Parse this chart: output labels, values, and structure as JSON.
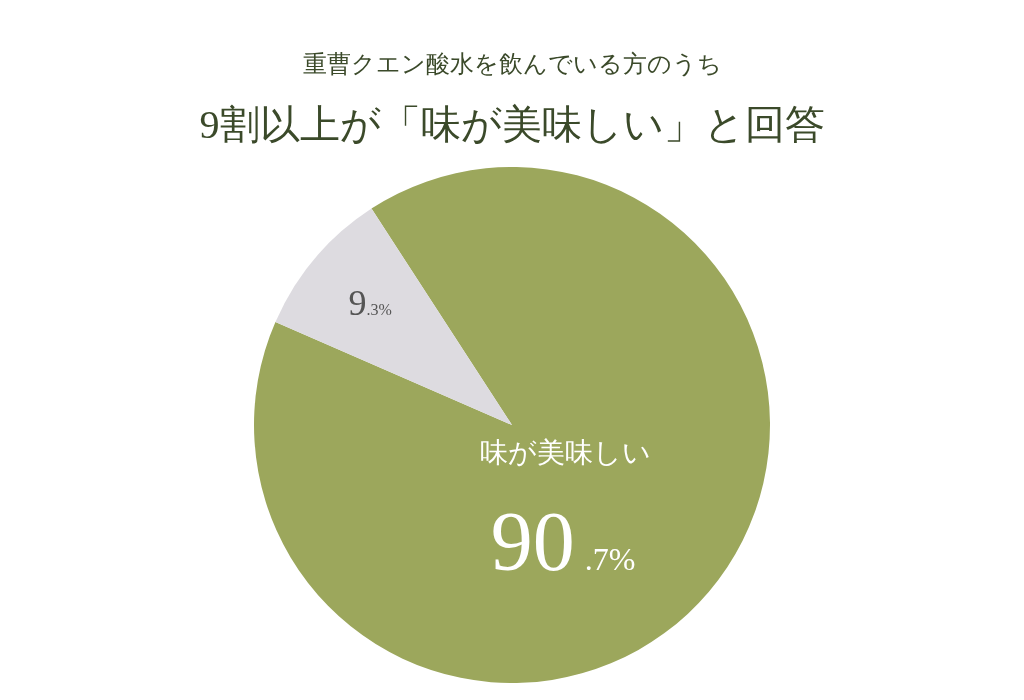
{
  "chart_data": {
    "type": "pie",
    "subtitle": "重曹クエン酸水を飲んでいる方のうち",
    "title": "9割以上が「味が美味しい」と回答",
    "categories": [
      "味が美味しい",
      null
    ],
    "values": [
      90.7,
      9.3
    ],
    "colors": [
      "#9ca75c",
      "#dddbe0"
    ],
    "value_labels": [
      "90.7%",
      "9.3%"
    ]
  }
}
